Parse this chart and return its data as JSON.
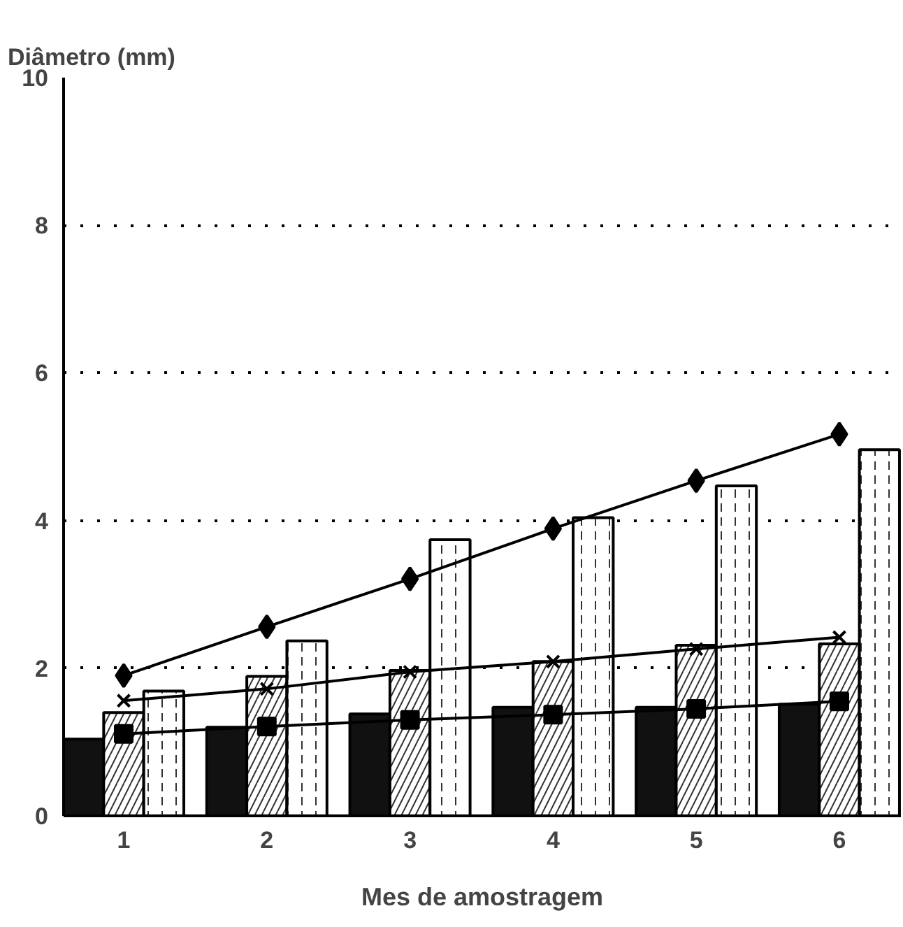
{
  "chart_data": {
    "type": "bar",
    "ylabel": "Diâmetro (mm)",
    "xlabel": "Mes de amostragem",
    "categories": [
      "1",
      "2",
      "3",
      "4",
      "5",
      "6"
    ],
    "ylim": [
      0,
      10
    ],
    "yticks": [
      0,
      2,
      4,
      6,
      8,
      10
    ],
    "grid": "y",
    "series": [
      {
        "color": "#111111",
        "values": [
          1.04,
          1.2,
          1.38,
          1.47,
          1.47,
          1.51
        ]
      },
      {
        "color": "#ffffff",
        "values": [
          1.4,
          1.89,
          1.97,
          2.09,
          2.31,
          2.33
        ]
      },
      {
        "color": "#ffffff",
        "values": [
          1.69,
          2.37,
          3.74,
          4.04,
          4.47,
          4.96
        ]
      },
      {
        "type": "line",
        "color": "#000000",
        "marker": "diamond",
        "values": [
          1.9,
          2.56,
          3.21,
          3.89,
          4.54,
          5.17
        ]
      },
      {
        "type": "line",
        "color": "#000000",
        "marker": "cross",
        "values": [
          1.56,
          1.72,
          1.95,
          2.09,
          2.26,
          2.42
        ]
      },
      {
        "type": "line",
        "color": "#000000",
        "marker": "square",
        "values": [
          1.11,
          1.21,
          1.3,
          1.37,
          1.45,
          1.55
        ]
      }
    ]
  }
}
